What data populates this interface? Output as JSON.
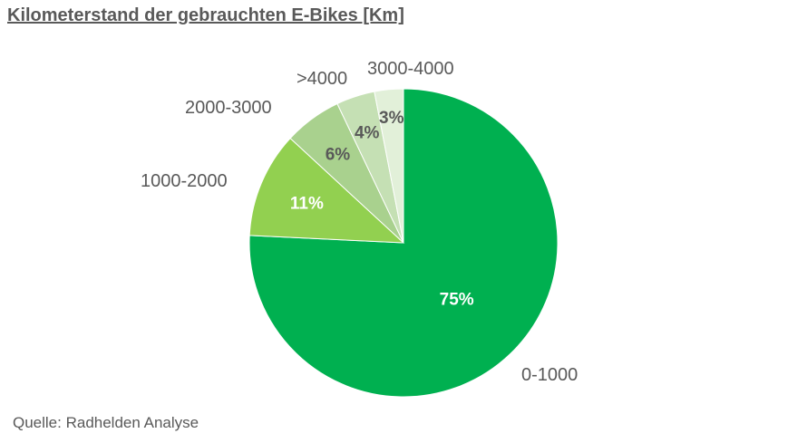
{
  "title": "Kilometerstand der gebrauchten E-Bikes [Km]",
  "source": "Quelle: Radhelden Analyse",
  "chart_data": {
    "type": "pie",
    "title": "Kilometerstand der gebrauchten E-Bikes [Km]",
    "categories": [
      "0-1000",
      "1000-2000",
      "2000-3000",
      ">4000",
      "3000-4000"
    ],
    "values": [
      75,
      11,
      6,
      4,
      3
    ],
    "data_labels": [
      "75%",
      "11%",
      "6%",
      "4%",
      "3%"
    ],
    "colors": [
      "#00B050",
      "#92D050",
      "#A9D18E",
      "#C5E0B4",
      "#E2F0D9"
    ],
    "label_colors": [
      "#FFFFFF",
      "#FFFFFF",
      "#595959",
      "#595959",
      "#595959"
    ],
    "legend": "none"
  }
}
